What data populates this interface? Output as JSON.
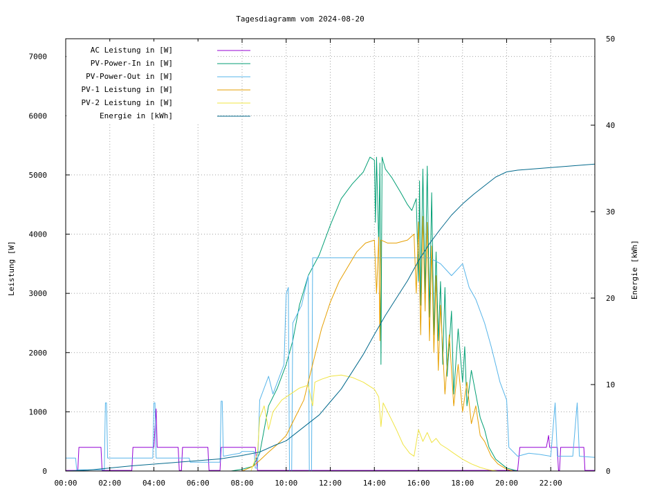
{
  "chart_data": {
    "type": "line",
    "title": "Tagesdiagramm vom 2024-08-20",
    "ylabel": "Leistung [W]",
    "y2label": "Energie [kWh]",
    "xlabel": "",
    "x_unit": "hours",
    "xlim": [
      0,
      24
    ],
    "ylim": [
      0,
      7300
    ],
    "y2lim": [
      0,
      50
    ],
    "x_ticks": [
      {
        "value": 0,
        "label": "00:00"
      },
      {
        "value": 2,
        "label": "02:00"
      },
      {
        "value": 4,
        "label": "04:00"
      },
      {
        "value": 6,
        "label": "06:00"
      },
      {
        "value": 8,
        "label": "08:00"
      },
      {
        "value": 10,
        "label": "10:00"
      },
      {
        "value": 12,
        "label": "12:00"
      },
      {
        "value": 14,
        "label": "14:00"
      },
      {
        "value": 16,
        "label": "16:00"
      },
      {
        "value": 18,
        "label": "18:00"
      },
      {
        "value": 20,
        "label": "20:00"
      },
      {
        "value": 22,
        "label": "22:00"
      }
    ],
    "y_ticks": [
      {
        "value": 0,
        "label": "0"
      },
      {
        "value": 1000,
        "label": "1000"
      },
      {
        "value": 2000,
        "label": "2000"
      },
      {
        "value": 3000,
        "label": "3000"
      },
      {
        "value": 4000,
        "label": "4000"
      },
      {
        "value": 5000,
        "label": "5000"
      },
      {
        "value": 6000,
        "label": "6000"
      },
      {
        "value": 7000,
        "label": "7000"
      }
    ],
    "y2_ticks": [
      {
        "value": 0,
        "label": "0"
      },
      {
        "value": 10,
        "label": "10"
      },
      {
        "value": 20,
        "label": "20"
      },
      {
        "value": 30,
        "label": "30"
      },
      {
        "value": 40,
        "label": "40"
      },
      {
        "value": 50,
        "label": "50"
      }
    ],
    "grid": true,
    "legend_position": "top-left",
    "series": [
      {
        "name": "AC Leistung in [W]",
        "color": "#9400d3",
        "axis": "left",
        "points": [
          [
            0,
            10
          ],
          [
            0.55,
            10
          ],
          [
            0.6,
            400
          ],
          [
            1.6,
            400
          ],
          [
            1.65,
            10
          ],
          [
            3.0,
            10
          ],
          [
            3.05,
            400
          ],
          [
            4.0,
            400
          ],
          [
            4.1,
            1050
          ],
          [
            4.15,
            400
          ],
          [
            5.1,
            400
          ],
          [
            5.15,
            10
          ],
          [
            5.25,
            10
          ],
          [
            5.3,
            400
          ],
          [
            6.45,
            400
          ],
          [
            6.5,
            10
          ],
          [
            7.0,
            10
          ],
          [
            7.05,
            400
          ],
          [
            8.6,
            400
          ],
          [
            8.7,
            10
          ],
          [
            8.8,
            10
          ],
          [
            10.1,
            10
          ],
          [
            10.2,
            10
          ],
          [
            20.0,
            10
          ],
          [
            20.5,
            10
          ],
          [
            20.6,
            400
          ],
          [
            21.8,
            400
          ],
          [
            21.9,
            600
          ],
          [
            21.95,
            400
          ],
          [
            22.3,
            400
          ],
          [
            22.35,
            10
          ],
          [
            22.4,
            10
          ],
          [
            22.45,
            400
          ],
          [
            23.5,
            400
          ],
          [
            23.55,
            10
          ],
          [
            24,
            10
          ]
        ]
      },
      {
        "name": "PV-Power-In in [W]",
        "color": "#009e73",
        "axis": "left",
        "points": [
          [
            0,
            0
          ],
          [
            7.5,
            0
          ],
          [
            8.0,
            30
          ],
          [
            8.5,
            80
          ],
          [
            8.8,
            300
          ],
          [
            9.2,
            1100
          ],
          [
            9.6,
            1400
          ],
          [
            10.0,
            1800
          ],
          [
            10.3,
            2200
          ],
          [
            10.6,
            2800
          ],
          [
            11.0,
            3300
          ],
          [
            11.5,
            3650
          ],
          [
            12.0,
            4150
          ],
          [
            12.5,
            4600
          ],
          [
            13.0,
            4850
          ],
          [
            13.5,
            5050
          ],
          [
            13.8,
            5300
          ],
          [
            14.0,
            5250
          ],
          [
            14.05,
            4200
          ],
          [
            14.1,
            5300
          ],
          [
            14.2,
            3800
          ],
          [
            14.25,
            5200
          ],
          [
            14.3,
            1800
          ],
          [
            14.35,
            5300
          ],
          [
            14.5,
            5100
          ],
          [
            14.8,
            4950
          ],
          [
            15.2,
            4700
          ],
          [
            15.5,
            4500
          ],
          [
            15.7,
            4400
          ],
          [
            15.9,
            4600
          ],
          [
            16.0,
            3200
          ],
          [
            16.05,
            4900
          ],
          [
            16.1,
            2800
          ],
          [
            16.2,
            5100
          ],
          [
            16.3,
            3000
          ],
          [
            16.4,
            5150
          ],
          [
            16.5,
            2600
          ],
          [
            16.6,
            4700
          ],
          [
            16.7,
            2300
          ],
          [
            16.8,
            3700
          ],
          [
            16.9,
            2200
          ],
          [
            17.0,
            3200
          ],
          [
            17.1,
            1800
          ],
          [
            17.2,
            3100
          ],
          [
            17.3,
            1600
          ],
          [
            17.5,
            2700
          ],
          [
            17.6,
            1300
          ],
          [
            17.8,
            2400
          ],
          [
            18.0,
            1500
          ],
          [
            18.1,
            2100
          ],
          [
            18.2,
            1100
          ],
          [
            18.4,
            1700
          ],
          [
            18.6,
            1300
          ],
          [
            18.8,
            900
          ],
          [
            19.0,
            700
          ],
          [
            19.2,
            400
          ],
          [
            19.5,
            200
          ],
          [
            20.0,
            50
          ],
          [
            20.5,
            0
          ],
          [
            24,
            0
          ]
        ]
      },
      {
        "name": "PV-Power-Out in [W]",
        "color": "#56b4e9",
        "axis": "left",
        "points": [
          [
            0,
            220
          ],
          [
            0.45,
            220
          ],
          [
            0.5,
            20
          ],
          [
            1.75,
            20
          ],
          [
            1.8,
            1150
          ],
          [
            1.85,
            1150
          ],
          [
            1.9,
            220
          ],
          [
            3.05,
            220
          ],
          [
            3.1,
            220
          ],
          [
            3.95,
            220
          ],
          [
            4.0,
            1150
          ],
          [
            4.05,
            1150
          ],
          [
            4.1,
            220
          ],
          [
            5.6,
            220
          ],
          [
            5.65,
            150
          ],
          [
            7.0,
            150
          ],
          [
            7.05,
            1180
          ],
          [
            7.1,
            1180
          ],
          [
            7.15,
            250
          ],
          [
            7.9,
            300
          ],
          [
            8.0,
            330
          ],
          [
            8.55,
            330
          ],
          [
            8.6,
            50
          ],
          [
            8.7,
            50
          ],
          [
            8.8,
            1200
          ],
          [
            9.2,
            1600
          ],
          [
            9.4,
            1300
          ],
          [
            9.6,
            1500
          ],
          [
            9.9,
            1800
          ],
          [
            10.0,
            3000
          ],
          [
            10.1,
            3100
          ],
          [
            10.15,
            0
          ],
          [
            10.25,
            0
          ],
          [
            10.3,
            2500
          ],
          [
            10.7,
            2800
          ],
          [
            11.0,
            3300
          ],
          [
            11.05,
            0
          ],
          [
            11.15,
            0
          ],
          [
            11.2,
            3600
          ],
          [
            16.5,
            3600
          ],
          [
            17.0,
            3500
          ],
          [
            17.5,
            3300
          ],
          [
            18.0,
            3500
          ],
          [
            18.3,
            3100
          ],
          [
            18.6,
            2900
          ],
          [
            19.0,
            2500
          ],
          [
            19.3,
            2100
          ],
          [
            19.5,
            1800
          ],
          [
            19.7,
            1500
          ],
          [
            20.0,
            1200
          ],
          [
            20.1,
            400
          ],
          [
            20.5,
            250
          ],
          [
            21.0,
            300
          ],
          [
            21.5,
            280
          ],
          [
            22.0,
            250
          ],
          [
            22.2,
            1150
          ],
          [
            22.3,
            250
          ],
          [
            23.0,
            250
          ],
          [
            23.2,
            1150
          ],
          [
            23.3,
            250
          ],
          [
            24,
            230
          ]
        ]
      },
      {
        "name": "PV-1 Leistung in [W]",
        "color": "#e69f00",
        "axis": "left",
        "points": [
          [
            0,
            0
          ],
          [
            8.0,
            0
          ],
          [
            8.5,
            80
          ],
          [
            8.8,
            180
          ],
          [
            9.2,
            320
          ],
          [
            9.6,
            450
          ],
          [
            10.0,
            600
          ],
          [
            10.4,
            900
          ],
          [
            10.8,
            1200
          ],
          [
            11.2,
            1800
          ],
          [
            11.6,
            2400
          ],
          [
            12.0,
            2850
          ],
          [
            12.4,
            3200
          ],
          [
            12.8,
            3450
          ],
          [
            13.2,
            3700
          ],
          [
            13.6,
            3850
          ],
          [
            14.0,
            3900
          ],
          [
            14.1,
            3000
          ],
          [
            14.2,
            3950
          ],
          [
            14.25,
            2200
          ],
          [
            14.3,
            3900
          ],
          [
            14.6,
            3850
          ],
          [
            15.0,
            3850
          ],
          [
            15.5,
            3900
          ],
          [
            15.8,
            4000
          ],
          [
            15.9,
            3000
          ],
          [
            16.0,
            4200
          ],
          [
            16.1,
            2300
          ],
          [
            16.2,
            4300
          ],
          [
            16.3,
            2700
          ],
          [
            16.4,
            4200
          ],
          [
            16.5,
            2200
          ],
          [
            16.6,
            3800
          ],
          [
            16.7,
            2000
          ],
          [
            16.8,
            3300
          ],
          [
            16.9,
            1700
          ],
          [
            17.0,
            2800
          ],
          [
            17.2,
            1300
          ],
          [
            17.4,
            2300
          ],
          [
            17.6,
            1100
          ],
          [
            17.8,
            1800
          ],
          [
            18.0,
            1000
          ],
          [
            18.2,
            1500
          ],
          [
            18.4,
            800
          ],
          [
            18.6,
            1100
          ],
          [
            18.8,
            600
          ],
          [
            19.0,
            500
          ],
          [
            19.3,
            250
          ],
          [
            19.6,
            120
          ],
          [
            20.0,
            30
          ],
          [
            20.3,
            0
          ],
          [
            24,
            0
          ]
        ]
      },
      {
        "name": "PV-2 Leistung in [W]",
        "color": "#f0e442",
        "axis": "left",
        "points": [
          [
            0,
            0
          ],
          [
            8.4,
            0
          ],
          [
            8.7,
            300
          ],
          [
            8.8,
            900
          ],
          [
            9.0,
            1100
          ],
          [
            9.2,
            700
          ],
          [
            9.4,
            1000
          ],
          [
            9.8,
            1200
          ],
          [
            10.2,
            1300
          ],
          [
            10.6,
            1400
          ],
          [
            11.0,
            1450
          ],
          [
            11.2,
            1100
          ],
          [
            11.3,
            1500
          ],
          [
            11.6,
            1550
          ],
          [
            12.0,
            1600
          ],
          [
            12.5,
            1620
          ],
          [
            13.0,
            1580
          ],
          [
            13.5,
            1500
          ],
          [
            14.0,
            1380
          ],
          [
            14.2,
            1250
          ],
          [
            14.3,
            750
          ],
          [
            14.4,
            1150
          ],
          [
            14.6,
            1000
          ],
          [
            14.8,
            850
          ],
          [
            15.0,
            700
          ],
          [
            15.3,
            450
          ],
          [
            15.6,
            300
          ],
          [
            15.8,
            250
          ],
          [
            16.0,
            700
          ],
          [
            16.2,
            500
          ],
          [
            16.4,
            650
          ],
          [
            16.6,
            480
          ],
          [
            16.8,
            550
          ],
          [
            17.0,
            450
          ],
          [
            17.3,
            380
          ],
          [
            17.6,
            300
          ],
          [
            18.0,
            200
          ],
          [
            18.4,
            120
          ],
          [
            18.8,
            60
          ],
          [
            19.2,
            20
          ],
          [
            19.6,
            0
          ],
          [
            24,
            0
          ]
        ]
      },
      {
        "name": "Energie in [kWh]",
        "color": "#00688b",
        "axis": "right",
        "points": [
          [
            0,
            0
          ],
          [
            1,
            0.1
          ],
          [
            3,
            0.6
          ],
          [
            4,
            0.8
          ],
          [
            6,
            1.2
          ],
          [
            7,
            1.4
          ],
          [
            8,
            1.8
          ],
          [
            8.8,
            2.2
          ],
          [
            9.5,
            3.0
          ],
          [
            10,
            3.5
          ],
          [
            10.5,
            4.5
          ],
          [
            11,
            5.5
          ],
          [
            11.5,
            6.5
          ],
          [
            12,
            8.0
          ],
          [
            12.5,
            9.5
          ],
          [
            13,
            11.5
          ],
          [
            13.5,
            13.5
          ],
          [
            14,
            15.8
          ],
          [
            14.5,
            18.0
          ],
          [
            15,
            20.0
          ],
          [
            15.5,
            22.0
          ],
          [
            16,
            24.3
          ],
          [
            16.5,
            26.3
          ],
          [
            17,
            28.0
          ],
          [
            17.5,
            29.6
          ],
          [
            18,
            30.9
          ],
          [
            18.5,
            32.0
          ],
          [
            19,
            33.0
          ],
          [
            19.5,
            34.0
          ],
          [
            20,
            34.6
          ],
          [
            20.5,
            34.8
          ],
          [
            21,
            34.9
          ],
          [
            22,
            35.1
          ],
          [
            23,
            35.3
          ],
          [
            24,
            35.5
          ]
        ]
      }
    ]
  }
}
